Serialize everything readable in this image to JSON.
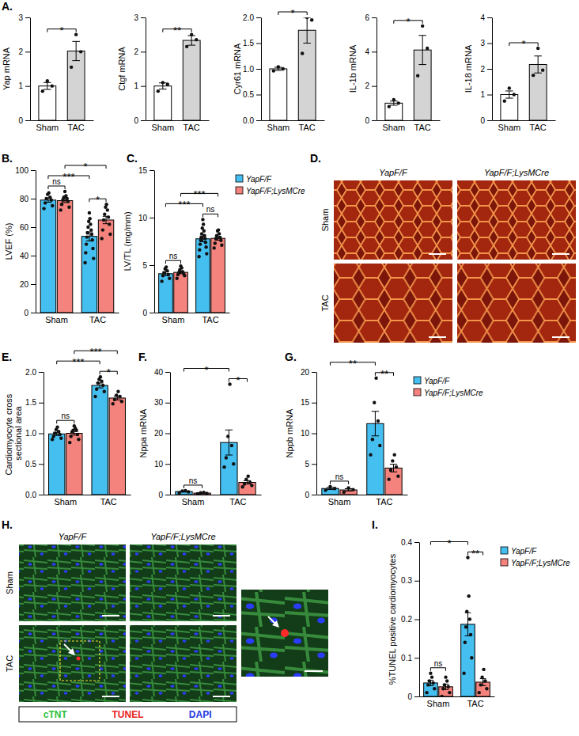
{
  "chart_data": [
    {
      "type": "bar",
      "panel": "A.",
      "y_label": "Yap mRNA",
      "categories": [
        "Sham",
        "TAC"
      ],
      "series": [
        {
          "colors": [
            "#ffffff",
            "#d4d4d4"
          ],
          "values": [
            1.0,
            2.02
          ],
          "errors": [
            0.1,
            0.28
          ],
          "points": [
            [
              0.85,
              1.0,
              1.15
            ],
            [
              1.55,
              2.0,
              2.5
            ]
          ]
        }
      ],
      "ylim": [
        0,
        3
      ],
      "yticks": [
        0,
        1,
        2,
        3
      ],
      "significance": [
        {
          "label": "*",
          "groups": [
            [
              0,
              0
            ],
            [
              1,
              0
            ]
          ]
        }
      ]
    },
    {
      "type": "bar",
      "y_label": "Ctgf mRNA",
      "categories": [
        "Sham",
        "TAC"
      ],
      "series": [
        {
          "colors": [
            "#ffffff",
            "#d4d4d4"
          ],
          "values": [
            1.0,
            2.33
          ],
          "errors": [
            0.09,
            0.14
          ],
          "points": [
            [
              0.85,
              1.05,
              1.1
            ],
            [
              2.15,
              2.35,
              2.5
            ]
          ]
        }
      ],
      "ylim": [
        0,
        3
      ],
      "yticks": [
        0,
        1,
        2,
        3
      ],
      "significance": [
        {
          "label": "**",
          "groups": [
            [
              0,
              0
            ],
            [
              1,
              0
            ]
          ]
        }
      ]
    },
    {
      "type": "bar",
      "y_label": "Cyr61 mRNA",
      "categories": [
        "Sham",
        "TAC"
      ],
      "series": [
        {
          "colors": [
            "#ffffff",
            "#d4d4d4"
          ],
          "values": [
            1.0,
            1.75
          ],
          "errors": [
            0.03,
            0.25
          ],
          "points": [
            [
              0.96,
              1.0,
              1.04
            ],
            [
              1.3,
              1.95,
              2.0
            ]
          ]
        }
      ],
      "ylim": [
        0,
        2
      ],
      "yticks": [
        {
          "value": 0,
          "label": "0.0"
        },
        0.5,
        {
          "value": 1,
          "label": "1.0"
        },
        1.5,
        {
          "value": 2,
          "label": "2.0"
        }
      ],
      "significance": [
        {
          "label": "*",
          "groups": [
            [
              0,
              0
            ],
            [
              1,
              0
            ]
          ]
        }
      ]
    },
    {
      "type": "bar",
      "y_label": "IL-1b mRNA",
      "categories": [
        "Sham",
        "TAC"
      ],
      "series": [
        {
          "colors": [
            "#ffffff",
            "#d4d4d4"
          ],
          "values": [
            1.0,
            4.1
          ],
          "errors": [
            0.12,
            0.85
          ],
          "points": [
            [
              0.8,
              1.0,
              1.2
            ],
            [
              2.6,
              4.2,
              5.5
            ]
          ]
        }
      ],
      "ylim": [
        0,
        6
      ],
      "yticks": [
        0,
        2,
        4,
        6
      ],
      "significance": [
        {
          "label": "*",
          "groups": [
            [
              0,
              0
            ],
            [
              1,
              0
            ]
          ]
        }
      ]
    },
    {
      "type": "bar",
      "y_label": "IL-18 mRNA",
      "categories": [
        "Sham",
        "TAC"
      ],
      "series": [
        {
          "colors": [
            "#ffffff",
            "#d4d4d4"
          ],
          "values": [
            1.0,
            2.17
          ],
          "errors": [
            0.14,
            0.33
          ],
          "points": [
            [
              0.75,
              1.0,
              1.25
            ],
            [
              1.75,
              1.95,
              2.8
            ]
          ]
        }
      ],
      "ylim": [
        0,
        4
      ],
      "yticks": [
        0,
        1,
        2,
        3,
        4
      ],
      "significance": [
        {
          "label": "*",
          "groups": [
            [
              0,
              0
            ],
            [
              1,
              0
            ]
          ]
        }
      ]
    },
    {
      "type": "bar",
      "panel": "B.",
      "y_label": "LVEF (%)",
      "categories": [
        "Sham",
        "TAC"
      ],
      "series": [
        {
          "color": "#45bff0",
          "values": [
            79,
            53.5
          ],
          "errors": [
            1.5,
            3.2
          ],
          "points": [
            [
              73,
              75,
              77,
              79,
              80,
              81,
              83,
              84
            ],
            [
              35,
              38,
              42,
              45,
              48,
              51,
              53,
              55,
              56,
              58,
              60,
              62,
              64,
              66,
              70
            ]
          ]
        },
        {
          "color": "#f4837d",
          "values": [
            78.6,
            65
          ],
          "errors": [
            1.3,
            2.6
          ],
          "points": [
            [
              72,
              74,
              76,
              78,
              79,
              80,
              81,
              82,
              85
            ],
            [
              52,
              55,
              58,
              62,
              65,
              67,
              69,
              72,
              74,
              76
            ]
          ]
        }
      ],
      "ylim": [
        0,
        100
      ],
      "yticks": [
        0,
        20,
        40,
        60,
        80,
        100
      ],
      "significance": [
        {
          "label": "***",
          "groups": [
            [
              0,
              0
            ],
            [
              1,
              0
            ]
          ]
        },
        {
          "label": "ns",
          "groups": [
            [
              0,
              0
            ],
            [
              0,
              1
            ]
          ]
        },
        {
          "label": "*",
          "groups": [
            [
              0,
              1
            ],
            [
              1,
              1
            ]
          ]
        },
        {
          "label": "*",
          "groups": [
            [
              1,
              0
            ],
            [
              1,
              1
            ]
          ]
        }
      ]
    },
    {
      "type": "bar",
      "panel": "C.",
      "y_label": "LV/TL (mg/mm)",
      "categories": [
        "Sham",
        "TAC"
      ],
      "legend": "right",
      "series": [
        {
          "name": "YapF/F",
          "color": "#45bff0",
          "values": [
            4.1,
            7.77
          ],
          "errors": [
            0.2,
            0.3
          ],
          "points": [
            [
              3.3,
              3.6,
              3.9,
              4.0,
              4.2,
              4.4,
              4.6,
              4.8
            ],
            [
              5.9,
              6.2,
              6.6,
              6.9,
              7.2,
              7.4,
              7.6,
              7.8,
              7.9,
              8.1,
              8.3,
              8.6,
              8.9,
              9.3,
              9.8
            ]
          ]
        },
        {
          "name": "YapF/F;LysMCre",
          "color": "#f4837d",
          "values": [
            4.24,
            7.82
          ],
          "errors": [
            0.15,
            0.2
          ],
          "points": [
            [
              3.6,
              3.9,
              4.0,
              4.1,
              4.2,
              4.3,
              4.5,
              4.7,
              4.9
            ],
            [
              6.8,
              7.1,
              7.3,
              7.6,
              7.8,
              7.9,
              8.1,
              8.3,
              8.6,
              8.7
            ]
          ]
        }
      ],
      "ylim": [
        0,
        15
      ],
      "yticks": [
        0,
        5,
        10,
        15
      ],
      "significance": [
        {
          "label": "***",
          "groups": [
            [
              0,
              0
            ],
            [
              1,
              0
            ]
          ]
        },
        {
          "label": "ns",
          "groups": [
            [
              0,
              0
            ],
            [
              0,
              1
            ]
          ]
        },
        {
          "label": "***",
          "groups": [
            [
              0,
              1
            ],
            [
              1,
              1
            ]
          ]
        },
        {
          "label": "ns",
          "groups": [
            [
              1,
              0
            ],
            [
              1,
              1
            ]
          ]
        }
      ]
    },
    {
      "type": "bar",
      "panel": "E.",
      "y_label": "Cardiomyocyte cross sectional area",
      "categories": [
        "Sham",
        "TAC"
      ],
      "series": [
        {
          "color": "#45bff0",
          "values": [
            0.99,
            1.78
          ],
          "errors": [
            0.025,
            0.04
          ],
          "points": [
            [
              0.9,
              0.92,
              0.95,
              0.98,
              1.0,
              1.03,
              1.06,
              1.1
            ],
            [
              1.6,
              1.68,
              1.72,
              1.78,
              1.82,
              1.85,
              1.88,
              1.92
            ]
          ]
        },
        {
          "color": "#f4837d",
          "values": [
            1.0,
            1.575
          ],
          "errors": [
            0.03,
            0.03
          ],
          "points": [
            [
              0.85,
              0.9,
              0.95,
              0.98,
              1.02,
              1.05,
              1.05,
              1.08,
              1.12
            ],
            [
              1.48,
              1.52,
              1.55,
              1.6,
              1.62,
              1.68
            ]
          ]
        }
      ],
      "ylim": [
        0,
        2
      ],
      "yticks": [
        {
          "value": 0,
          "label": "0.0"
        },
        0.5,
        {
          "value": 1,
          "label": "1.0"
        },
        1.5,
        {
          "value": 2,
          "label": "2.0"
        }
      ],
      "significance": [
        {
          "label": "***",
          "groups": [
            [
              0,
              0
            ],
            [
              1,
              0
            ]
          ]
        },
        {
          "label": "ns",
          "groups": [
            [
              0,
              0
            ],
            [
              0,
              1
            ]
          ]
        },
        {
          "label": "*",
          "groups": [
            [
              1,
              0
            ],
            [
              1,
              1
            ]
          ]
        },
        {
          "label": "***",
          "groups": [
            [
              0,
              1
            ],
            [
              1,
              1
            ]
          ]
        }
      ]
    },
    {
      "type": "bar",
      "panel": "F.",
      "y_label": "Nppa mRNA",
      "categories": [
        "Sham",
        "TAC"
      ],
      "series": [
        {
          "color": "#45bff0",
          "values": [
            1.0,
            17
          ],
          "errors": [
            0.16,
            4.1
          ],
          "points": [
            [
              0.6,
              0.9,
              1.2,
              1.3
            ],
            [
              9,
              10,
              12,
              16,
              19,
              36
            ]
          ]
        },
        {
          "color": "#f4837d",
          "values": [
            0.5,
            4
          ],
          "errors": [
            0.09,
            0.55
          ],
          "points": [
            [
              0.3,
              0.4,
              0.6,
              0.7
            ],
            [
              2.5,
              3,
              3.5,
              4,
              5,
              6
            ]
          ]
        }
      ],
      "ylim": [
        0,
        40
      ],
      "yticks": [
        0,
        10,
        20,
        30,
        40
      ],
      "significance": [
        {
          "label": "*",
          "groups": [
            [
              0,
              0
            ],
            [
              1,
              0
            ]
          ]
        },
        {
          "label": "ns",
          "groups": [
            [
              0,
              0
            ],
            [
              0,
              1
            ]
          ]
        },
        {
          "label": "*",
          "groups": [
            [
              1,
              0
            ],
            [
              1,
              1
            ]
          ]
        }
      ]
    },
    {
      "type": "bar",
      "panel": "G.",
      "y_label": "Nppb mRNA",
      "categories": [
        "Sham",
        "TAC"
      ],
      "legend": "right",
      "series": [
        {
          "name": "YapF/F",
          "color": "#45bff0",
          "values": [
            1.0,
            11.58
          ],
          "errors": [
            0.17,
            2.0
          ],
          "points": [
            [
              0.7,
              1.0,
              1.3
            ],
            [
              6.5,
              8,
              9,
              12,
              15,
              19
            ]
          ]
        },
        {
          "name": "YapF/F;LysMCre",
          "color": "#f4837d",
          "values": [
            0.77,
            4.33
          ],
          "errors": [
            0.2,
            0.62
          ],
          "points": [
            [
              0.4,
              0.8,
              1.1
            ],
            [
              2.5,
              3,
              4,
              4.5,
              5.5,
              6.5
            ]
          ]
        }
      ],
      "ylim": [
        0,
        20
      ],
      "yticks": [
        0,
        5,
        10,
        15,
        20
      ],
      "significance": [
        {
          "label": "**",
          "groups": [
            [
              0,
              0
            ],
            [
              1,
              0
            ]
          ]
        },
        {
          "label": "ns",
          "groups": [
            [
              0,
              0
            ],
            [
              0,
              1
            ]
          ]
        },
        {
          "label": "**",
          "groups": [
            [
              1,
              0
            ],
            [
              1,
              1
            ]
          ]
        }
      ]
    },
    {
      "type": "bar",
      "panel": "I.",
      "y_label": "%TUNEL positive cardiomyocytes",
      "categories": [
        "Sham",
        "TAC"
      ],
      "legend": "right",
      "series": [
        {
          "name": "YapF/F",
          "color": "#45bff0",
          "values": [
            0.035,
            0.187
          ],
          "errors": [
            0.007,
            0.03
          ],
          "points": [
            [
              0.01,
              0.02,
              0.03,
              0.035,
              0.04,
              0.05,
              0.06
            ],
            [
              0.06,
              0.1,
              0.14,
              0.16,
              0.18,
              0.2,
              0.22,
              0.26,
              0.36
            ]
          ]
        },
        {
          "name": "YapF/F;LysMCre",
          "color": "#f4837d",
          "values": [
            0.025,
            0.037
          ],
          "errors": [
            0.007,
            0.009
          ],
          "points": [
            [
              0,
              0.01,
              0.02,
              0.025,
              0.03,
              0.04,
              0.05
            ],
            [
              0.01,
              0.02,
              0.03,
              0.04,
              0.05,
              0.07
            ]
          ]
        }
      ],
      "ylim": [
        0,
        0.4
      ],
      "yticks": [
        0,
        0.1,
        0.2,
        0.3,
        0.4
      ],
      "significance": [
        {
          "label": "*",
          "groups": [
            [
              0,
              0
            ],
            [
              1,
              0
            ]
          ]
        },
        {
          "label": "ns",
          "groups": [
            [
              0,
              0
            ],
            [
              0,
              1
            ]
          ]
        },
        {
          "label": "**",
          "groups": [
            [
              1,
              0
            ],
            [
              1,
              1
            ]
          ]
        }
      ]
    }
  ],
  "image_panels": [
    {
      "panel": "D.",
      "columns": [
        "YapF/F",
        "YapF/F;LysMCre"
      ],
      "rows": [
        "Sham",
        "TAC"
      ]
    },
    {
      "panel": "H.",
      "columns": [
        "YapF/F",
        "YapF/F;LysMCre"
      ],
      "rows": [
        "Sham",
        "TAC"
      ],
      "stains": [
        {
          "name": "cTNT",
          "color": "#2fbf3a"
        },
        {
          "name": "TUNEL",
          "color": "#e8231c"
        },
        {
          "name": "DAPI",
          "color": "#2336e0"
        }
      ]
    }
  ]
}
